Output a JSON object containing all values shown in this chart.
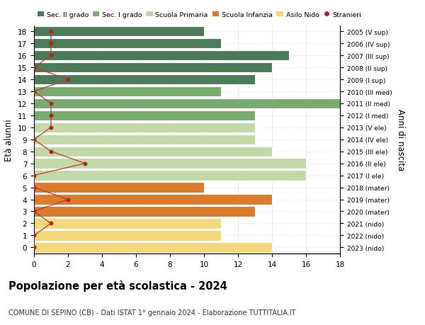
{
  "ages": [
    18,
    17,
    16,
    15,
    14,
    13,
    12,
    11,
    10,
    9,
    8,
    7,
    6,
    5,
    4,
    3,
    2,
    1,
    0
  ],
  "years": [
    "2005 (V sup)",
    "2006 (IV sup)",
    "2007 (III sup)",
    "2008 (II sup)",
    "2009 (I sup)",
    "2010 (III med)",
    "2011 (II med)",
    "2012 (I med)",
    "2013 (V ele)",
    "2014 (IV ele)",
    "2015 (III ele)",
    "2016 (II ele)",
    "2017 (I ele)",
    "2018 (mater)",
    "2019 (mater)",
    "2020 (mater)",
    "2021 (nido)",
    "2022 (nido)",
    "2023 (nido)"
  ],
  "bar_values": [
    10,
    11,
    15,
    14,
    13,
    11,
    18,
    13,
    13,
    13,
    14,
    16,
    16,
    10,
    14,
    13,
    11,
    11,
    14
  ],
  "bar_colors": [
    "#4a7c59",
    "#4a7c59",
    "#4a7c59",
    "#4a7c59",
    "#4a7c59",
    "#7aab6e",
    "#7aab6e",
    "#7aab6e",
    "#c2d9a5",
    "#c2d9a5",
    "#c2d9a5",
    "#c2d9a5",
    "#c2d9a5",
    "#d97c2b",
    "#d97c2b",
    "#d97c2b",
    "#f5d87a",
    "#f5d87a",
    "#f5d87a"
  ],
  "stranieri_values": [
    1,
    1,
    1,
    0,
    2,
    0,
    1,
    1,
    1,
    0,
    1,
    3,
    0,
    0,
    2,
    0,
    1,
    0,
    0
  ],
  "legend_labels": [
    "Sec. II grado",
    "Sec. I grado",
    "Scuola Primaria",
    "Scuola Infanzia",
    "Asilo Nido",
    "Stranieri"
  ],
  "legend_colors": [
    "#4a7c59",
    "#7aab6e",
    "#c2d9a5",
    "#d97c2b",
    "#f5d87a",
    "#b22222"
  ],
  "title": "Popolazione per età scolastica - 2024",
  "subtitle": "COMUNE DI SEPINO (CB) - Dati ISTAT 1° gennaio 2024 - Elaborazione TUTTITALIA.IT",
  "ylabel_left": "Età alunni",
  "ylabel_right": "Anni di nascita",
  "xlim": [
    0,
    18
  ],
  "bg_color": "#ffffff",
  "grid_color": "#cccccc",
  "stranieri_line_color": "#c0392b",
  "stranieri_dot_color": "#b22222"
}
